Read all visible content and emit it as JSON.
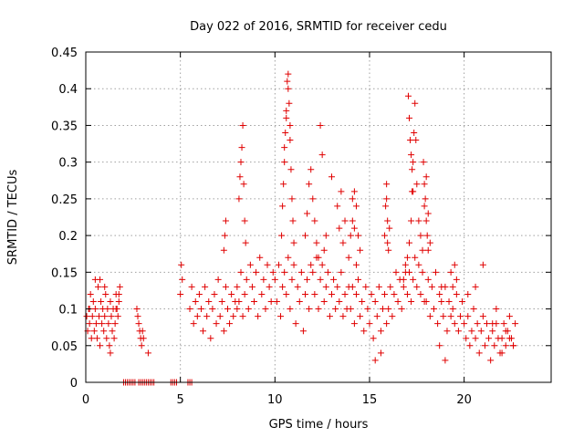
{
  "chart_data": {
    "type": "scatter",
    "title": "Day 022 of 2016, SRMTID for receiver cedu",
    "xlabel": "GPS time / hours",
    "ylabel": "SRMTID / TECUs",
    "xlim": [
      0,
      24.6
    ],
    "ylim": [
      0,
      0.45
    ],
    "x_ticks": [
      0,
      5,
      10,
      15,
      20
    ],
    "x_tick_labels": [
      "0",
      "5",
      "10",
      "15",
      "20"
    ],
    "y_ticks": [
      0,
      0.05,
      0.1,
      0.15,
      0.2,
      0.25,
      0.3,
      0.35,
      0.4,
      0.45
    ],
    "y_tick_labels": [
      "0",
      "0.05",
      "0.1",
      "0.15",
      "0.2",
      "0.25",
      "0.3",
      "0.35",
      "0.4",
      "0.45"
    ],
    "grid": true,
    "marker": "plus",
    "color": "#e00000",
    "series": [
      {
        "name": "SRMTID",
        "x": [
          0.05,
          0.1,
          0.15,
          0.2,
          0.25,
          0.3,
          0.35,
          0.4,
          0.45,
          0.5,
          0.55,
          0.6,
          0.65,
          0.7,
          0.75,
          0.8,
          0.85,
          0.9,
          0.95,
          1.0,
          1.05,
          1.1,
          1.15,
          1.2,
          1.25,
          1.3,
          1.35,
          1.4,
          1.45,
          1.5,
          1.55,
          1.6,
          1.65,
          1.7,
          1.75,
          1.8,
          0.2,
          0.5,
          0.75,
          1.0,
          1.3,
          1.6,
          1.75,
          2.7,
          2.75,
          2.8,
          2.85,
          2.9,
          2.95,
          3.0,
          3.05,
          3.3,
          2.0,
          2.1,
          2.2,
          2.3,
          2.4,
          2.5,
          2.6,
          2.8,
          2.9,
          3.0,
          3.1,
          3.2,
          3.3,
          3.4,
          3.5,
          3.6,
          4.5,
          4.6,
          4.7,
          4.8,
          5.4,
          5.5,
          5.6,
          5.0,
          5.05,
          5.1,
          5.5,
          5.6,
          5.7,
          5.8,
          5.9,
          6.0,
          6.1,
          6.2,
          6.3,
          6.4,
          6.5,
          6.6,
          6.7,
          6.8,
          6.9,
          7.0,
          7.1,
          7.2,
          7.3,
          7.4,
          7.5,
          7.6,
          7.7,
          7.8,
          7.9,
          8.0,
          7.3,
          7.35,
          7.4,
          8.0,
          8.1,
          8.2,
          8.3,
          8.4,
          8.5,
          8.6,
          8.7,
          8.8,
          8.9,
          9.0,
          9.1,
          9.2,
          9.3,
          9.4,
          9.5,
          9.6,
          9.7,
          9.8,
          9.9,
          8.1,
          8.15,
          8.2,
          8.25,
          8.3,
          8.35,
          8.4,
          8.45,
          10.0,
          10.1,
          10.2,
          10.3,
          10.4,
          10.5,
          10.6,
          10.7,
          10.8,
          10.9,
          11.0,
          11.1,
          11.2,
          11.3,
          11.4,
          11.5,
          11.6,
          11.7,
          11.8,
          11.9,
          10.35,
          10.4,
          10.45,
          10.5,
          10.55,
          10.6,
          10.65,
          10.7,
          10.75,
          10.8,
          10.85,
          10.9,
          10.95,
          11.0,
          10.5,
          10.6,
          10.7,
          10.8,
          12.0,
          12.1,
          12.2,
          12.3,
          12.4,
          12.5,
          12.6,
          12.7,
          12.8,
          12.9,
          13.0,
          13.1,
          13.2,
          13.3,
          13.4,
          13.5,
          13.6,
          13.7,
          13.8,
          13.9,
          11.6,
          11.7,
          11.8,
          11.9,
          12.0,
          12.1,
          12.2,
          12.3,
          12.4,
          12.5,
          12.6,
          12.7,
          13.3,
          13.4,
          13.6,
          13.7,
          13.0,
          13.5,
          14.0,
          14.1,
          14.2,
          14.3,
          14.4,
          14.5,
          14.6,
          14.7,
          14.8,
          14.9,
          15.0,
          15.1,
          15.2,
          15.3,
          15.4,
          15.5,
          15.6,
          15.7,
          15.8,
          15.9,
          13.9,
          14.0,
          14.1,
          14.2,
          14.3,
          14.4,
          14.5,
          14.1,
          14.2,
          14.3,
          15.3,
          15.6,
          16.0,
          16.1,
          16.2,
          16.3,
          16.4,
          16.5,
          16.6,
          16.7,
          16.8,
          16.9,
          17.0,
          17.1,
          17.2,
          17.3,
          17.4,
          17.5,
          17.6,
          17.7,
          17.8,
          17.9,
          15.8,
          15.85,
          15.9,
          15.95,
          16.0,
          16.05,
          15.9,
          15.95,
          16.8,
          16.9,
          17.0,
          17.1,
          17.2,
          17.25,
          17.3,
          17.35,
          17.4,
          17.45,
          17.5,
          17.6,
          17.7,
          17.8,
          17.9,
          18.0,
          18.1,
          18.2,
          17.05,
          17.1,
          17.15,
          17.2,
          17.25,
          17.3,
          17.85,
          17.9,
          17.95,
          18.0,
          18.05,
          18.1,
          18.0,
          18.1,
          18.2,
          18.3,
          18.4,
          18.5,
          18.6,
          18.7,
          18.8,
          18.9,
          19.0,
          19.1,
          19.2,
          19.3,
          19.4,
          19.5,
          19.6,
          19.7,
          19.8,
          19.9,
          19.3,
          19.4,
          19.5,
          19.6,
          18.7,
          18.8,
          19.0,
          20.0,
          20.1,
          20.2,
          20.3,
          20.4,
          20.5,
          20.6,
          20.7,
          20.8,
          20.9,
          21.0,
          21.1,
          21.2,
          21.3,
          21.4,
          21.5,
          21.6,
          21.7,
          21.8,
          21.9,
          20.6,
          20.2,
          21.0,
          22.0,
          22.1,
          22.2,
          22.3,
          22.4,
          22.5,
          22.6,
          22.7,
          22.0,
          22.2,
          22.4,
          22.6,
          21.7,
          21.5
        ],
        "y": [
          0.09,
          0.07,
          0.1,
          0.08,
          0.12,
          0.06,
          0.09,
          0.11,
          0.07,
          0.1,
          0.08,
          0.06,
          0.13,
          0.09,
          0.05,
          0.11,
          0.08,
          0.1,
          0.07,
          0.09,
          0.12,
          0.06,
          0.1,
          0.08,
          0.05,
          0.11,
          0.09,
          0.07,
          0.1,
          0.06,
          0.08,
          0.12,
          0.1,
          0.09,
          0.11,
          0.13,
          0.1,
          0.14,
          0.14,
          0.13,
          0.04,
          0.1,
          0.12,
          0.1,
          0.09,
          0.08,
          0.07,
          0.06,
          0.05,
          0.07,
          0.06,
          0.04,
          0,
          0,
          0,
          0,
          0,
          0,
          0,
          0,
          0,
          0,
          0,
          0,
          0,
          0,
          0,
          0,
          0,
          0,
          0,
          0,
          0,
          0,
          0,
          0.12,
          0.16,
          0.14,
          0.1,
          0.13,
          0.08,
          0.11,
          0.09,
          0.12,
          0.1,
          0.07,
          0.13,
          0.09,
          0.11,
          0.06,
          0.1,
          0.12,
          0.08,
          0.14,
          0.09,
          0.11,
          0.07,
          0.13,
          0.1,
          0.08,
          0.12,
          0.09,
          0.11,
          0.1,
          0.18,
          0.2,
          0.22,
          0.13,
          0.11,
          0.15,
          0.09,
          0.12,
          0.14,
          0.1,
          0.16,
          0.13,
          0.11,
          0.15,
          0.09,
          0.17,
          0.12,
          0.14,
          0.1,
          0.16,
          0.13,
          0.11,
          0.15,
          0.25,
          0.28,
          0.3,
          0.32,
          0.35,
          0.27,
          0.22,
          0.19,
          0.14,
          0.11,
          0.16,
          0.09,
          0.13,
          0.15,
          0.12,
          0.17,
          0.1,
          0.14,
          0.16,
          0.08,
          0.13,
          0.11,
          0.15,
          0.07,
          0.12,
          0.14,
          0.1,
          0.16,
          0.2,
          0.24,
          0.27,
          0.3,
          0.34,
          0.37,
          0.41,
          0.42,
          0.38,
          0.33,
          0.29,
          0.25,
          0.22,
          0.19,
          0.32,
          0.36,
          0.4,
          0.35,
          0.15,
          0.12,
          0.17,
          0.1,
          0.14,
          0.16,
          0.11,
          0.13,
          0.15,
          0.09,
          0.12,
          0.14,
          0.1,
          0.13,
          0.11,
          0.15,
          0.09,
          0.12,
          0.1,
          0.13,
          0.2,
          0.23,
          0.27,
          0.29,
          0.25,
          0.22,
          0.19,
          0.17,
          0.35,
          0.31,
          0.18,
          0.2,
          0.24,
          0.21,
          0.19,
          0.22,
          0.28,
          0.26,
          0.1,
          0.13,
          0.08,
          0.12,
          0.14,
          0.09,
          0.11,
          0.07,
          0.13,
          0.1,
          0.08,
          0.12,
          0.06,
          0.11,
          0.09,
          0.13,
          0.07,
          0.1,
          0.12,
          0.08,
          0.17,
          0.2,
          0.22,
          0.26,
          0.24,
          0.2,
          0.18,
          0.25,
          0.21,
          0.16,
          0.03,
          0.04,
          0.1,
          0.13,
          0.09,
          0.12,
          0.15,
          0.11,
          0.14,
          0.1,
          0.13,
          0.16,
          0.12,
          0.15,
          0.11,
          0.14,
          0.17,
          0.13,
          0.16,
          0.12,
          0.15,
          0.11,
          0.2,
          0.24,
          0.27,
          0.22,
          0.18,
          0.21,
          0.25,
          0.19,
          0.14,
          0.15,
          0.17,
          0.19,
          0.22,
          0.26,
          0.3,
          0.34,
          0.38,
          0.33,
          0.27,
          0.22,
          0.2,
          0.18,
          0.24,
          0.28,
          0.23,
          0.19,
          0.39,
          0.36,
          0.33,
          0.31,
          0.29,
          0.26,
          0.3,
          0.27,
          0.25,
          0.22,
          0.2,
          0.18,
          0.11,
          0.14,
          0.09,
          0.13,
          0.1,
          0.15,
          0.08,
          0.12,
          0.11,
          0.09,
          0.13,
          0.07,
          0.11,
          0.09,
          0.1,
          0.08,
          0.12,
          0.07,
          0.09,
          0.11,
          0.15,
          0.13,
          0.16,
          0.14,
          0.05,
          0.13,
          0.03,
          0.08,
          0.06,
          0.09,
          0.05,
          0.07,
          0.1,
          0.06,
          0.08,
          0.04,
          0.07,
          0.09,
          0.05,
          0.08,
          0.06,
          0.03,
          0.07,
          0.05,
          0.08,
          0.06,
          0.04,
          0.13,
          0.12,
          0.16,
          0.06,
          0.08,
          0.05,
          0.07,
          0.09,
          0.06,
          0.05,
          0.08,
          0.04,
          0.07,
          0.06,
          0.05,
          0.1,
          0.08
        ]
      }
    ]
  }
}
